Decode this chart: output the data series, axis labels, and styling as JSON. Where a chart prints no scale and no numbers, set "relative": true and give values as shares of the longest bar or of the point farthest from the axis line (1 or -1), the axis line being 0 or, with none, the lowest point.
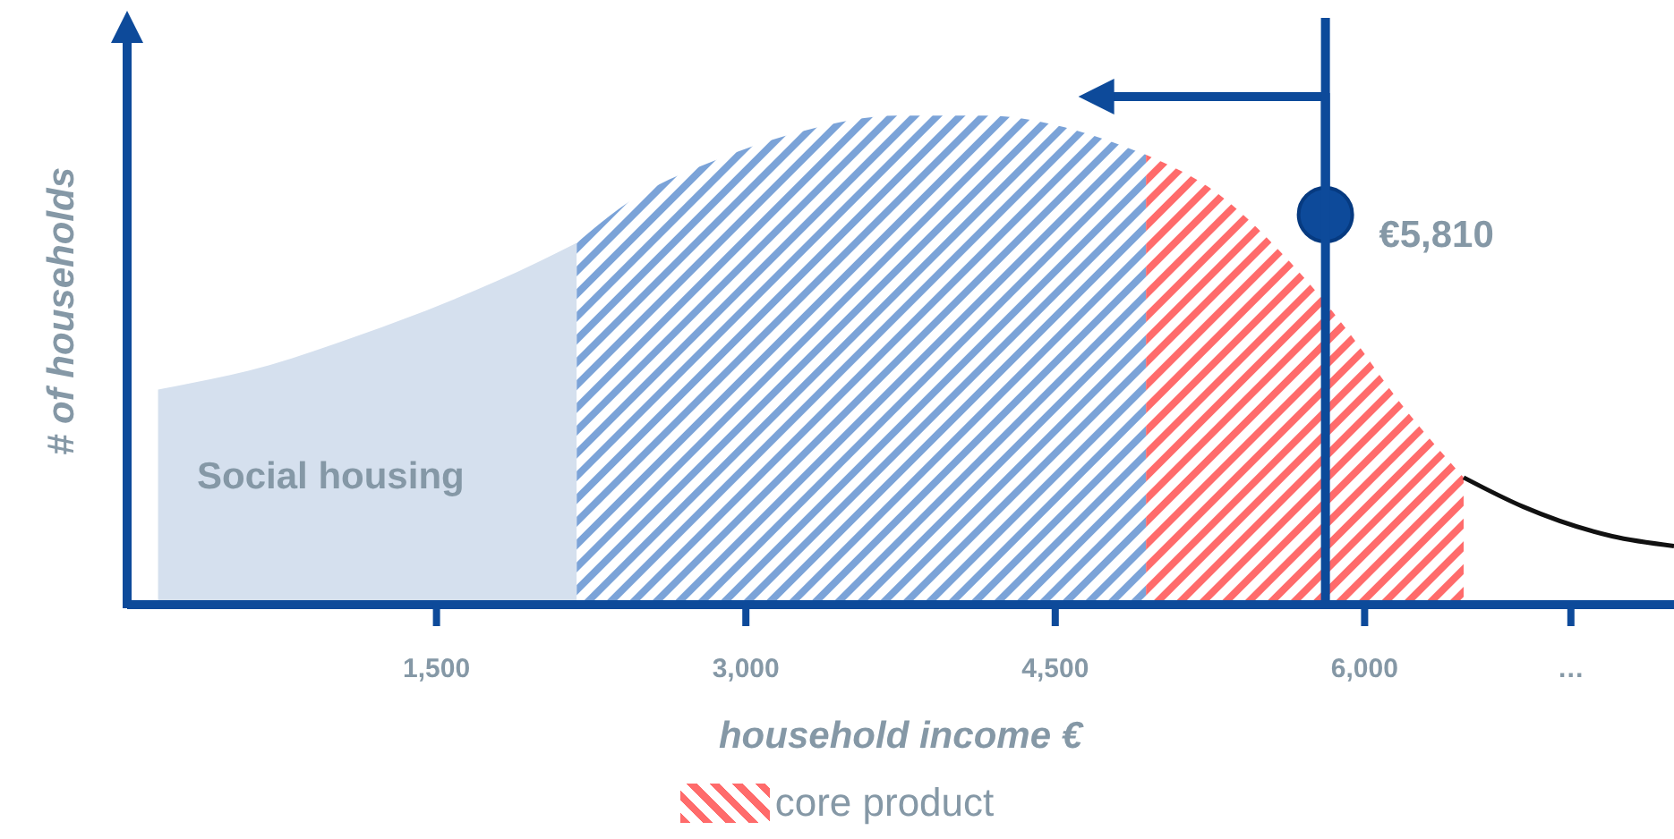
{
  "chart_data": {
    "type": "area",
    "relative": true,
    "xlabel": "household income €",
    "ylabel": "# of households",
    "xlim": [
      0,
      7500
    ],
    "xticks": [
      {
        "value": 1500,
        "label": "1,500"
      },
      {
        "value": 3000,
        "label": "3,000"
      },
      {
        "value": 4500,
        "label": "4,500"
      },
      {
        "value": 6000,
        "label": "6,000"
      },
      {
        "value": 7000,
        "label": "…"
      }
    ],
    "legend": "bottom",
    "series": [
      {
        "color": "#d5e0ee",
        "x": [
          150,
          690,
          1120,
          1560,
          1990,
          2180
        ],
        "values": [
          0.44,
          0.49,
          0.55,
          0.62,
          0.7,
          0.74
        ]
      },
      {
        "color": "#7ba3d8",
        "x": [
          2180,
          2420,
          2860,
          3290,
          3730,
          4160,
          4600,
          4940
        ],
        "values": [
          0.74,
          0.82,
          0.91,
          0.97,
          1,
          1,
          0.97,
          0.92
        ]
      },
      {
        "name": "core product",
        "color": "#ff6b6b",
        "x": [
          4940,
          5290,
          5640,
          5900,
          6160,
          6480
        ],
        "values": [
          0.92,
          0.84,
          0.7,
          0.57,
          0.42,
          0.26
        ]
      },
      {
        "type": "line",
        "color": "#111111",
        "x": [
          6480,
          6770,
          7200,
          7500
        ],
        "values": [
          0.26,
          0.2,
          0.14,
          0.12
        ]
      }
    ],
    "ref_lines": [
      {
        "axis": "x",
        "value": 5810,
        "label": "€5,810",
        "color": "#0d4a9a"
      }
    ],
    "annotations": [
      "Social housing"
    ]
  }
}
